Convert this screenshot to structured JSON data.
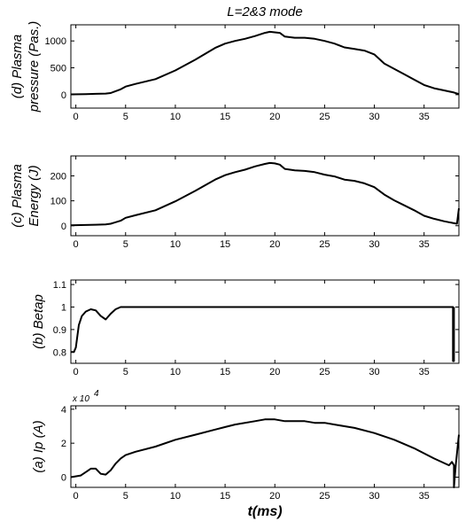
{
  "chart_data": [
    {
      "type": "line",
      "panel": "d",
      "title": "L=2&3 mode",
      "ylabel_lines": [
        "(d) Plasma",
        "pressure (Pas.)"
      ],
      "xlim": [
        -0.5,
        38.5
      ],
      "ylim": [
        -250,
        1300
      ],
      "x_ticks": [
        0,
        5,
        10,
        15,
        20,
        25,
        30,
        35
      ],
      "y_ticks": [
        0,
        500,
        1000
      ],
      "x": [
        -0.5,
        1.0,
        2.0,
        3.0,
        3.5,
        4.5,
        5.0,
        6.0,
        8.0,
        10.0,
        12.0,
        14.0,
        15.0,
        16.0,
        17.0,
        18.0,
        19.0,
        19.5,
        20.0,
        20.5,
        21.0,
        22.0,
        23.0,
        24.0,
        25.0,
        26.0,
        27.0,
        28.0,
        29.0,
        30.0,
        31.0,
        32.0,
        33.0,
        34.0,
        35.0,
        36.0,
        37.0,
        38.0,
        38.5
      ],
      "values": [
        5,
        10,
        15,
        20,
        30,
        100,
        150,
        200,
        290,
        450,
        650,
        870,
        950,
        1000,
        1040,
        1090,
        1150,
        1170,
        1160,
        1150,
        1080,
        1060,
        1060,
        1040,
        1000,
        950,
        880,
        850,
        820,
        750,
        580,
        480,
        380,
        280,
        180,
        120,
        80,
        40,
        10
      ]
    },
    {
      "type": "line",
      "panel": "c",
      "ylabel_lines": [
        "(c) Plasma",
        "Energy (J)"
      ],
      "xlim": [
        -0.5,
        38.5
      ],
      "ylim": [
        -40,
        280
      ],
      "x_ticks": [
        0,
        5,
        10,
        15,
        20,
        25,
        30,
        35
      ],
      "y_ticks": [
        0,
        100,
        200
      ],
      "x": [
        -0.5,
        1.0,
        2.0,
        3.0,
        3.5,
        4.5,
        5.0,
        6.0,
        8.0,
        10.0,
        12.0,
        14.0,
        15.0,
        16.0,
        17.0,
        18.0,
        19.0,
        19.5,
        20.0,
        20.5,
        21.0,
        22.0,
        23.0,
        24.0,
        25.0,
        26.0,
        27.0,
        28.0,
        29.0,
        30.0,
        31.0,
        32.0,
        33.0,
        34.0,
        35.0,
        36.0,
        37.0,
        38.0,
        38.3,
        38.5
      ],
      "values": [
        2,
        3,
        4,
        5,
        8,
        20,
        32,
        42,
        62,
        98,
        140,
        185,
        203,
        215,
        225,
        238,
        248,
        252,
        250,
        245,
        228,
        222,
        220,
        215,
        205,
        198,
        185,
        180,
        170,
        155,
        125,
        102,
        82,
        62,
        40,
        28,
        18,
        10,
        8,
        70
      ]
    },
    {
      "type": "line",
      "panel": "b",
      "ylabel_lines": [
        "(b) Betap"
      ],
      "xlim": [
        -0.5,
        38.5
      ],
      "ylim": [
        0.75,
        1.12
      ],
      "x_ticks": [
        0,
        5,
        10,
        15,
        20,
        25,
        30,
        35
      ],
      "y_ticks": [
        0.8,
        0.9,
        1,
        1.1
      ],
      "y_tick_labels": [
        "0.8",
        "0.9",
        "1",
        "1.1"
      ],
      "x": [
        -0.5,
        -0.2,
        0.0,
        0.3,
        0.6,
        1.0,
        1.5,
        2.0,
        2.5,
        3.0,
        3.5,
        4.0,
        4.5,
        5.0,
        10.0,
        20.0,
        30.0,
        37.8,
        37.9,
        37.9,
        38.0,
        38.0,
        38.0
      ],
      "values": [
        0.8,
        0.8,
        0.82,
        0.92,
        0.96,
        0.98,
        0.99,
        0.985,
        0.96,
        0.945,
        0.97,
        0.99,
        1.0,
        1.0,
        1.0,
        1.0,
        1.0,
        1.0,
        1.0,
        0.76,
        0.76,
        1.0,
        1.0
      ]
    },
    {
      "type": "line",
      "panel": "a",
      "ylabel_lines": [
        "(a) Ip (A)"
      ],
      "y_exponent_label": "x 10",
      "y_exponent_power": "4",
      "xlabel": "t(ms)",
      "xlim": [
        -0.5,
        38.5
      ],
      "ylim": [
        -0.6,
        4.2
      ],
      "x_ticks": [
        0,
        5,
        10,
        15,
        20,
        25,
        30,
        35
      ],
      "y_ticks": [
        0,
        2,
        4
      ],
      "x": [
        -0.5,
        0.5,
        1.0,
        1.5,
        2.0,
        2.5,
        3.0,
        3.5,
        4.0,
        4.5,
        5.0,
        6.0,
        8.0,
        10.0,
        12.0,
        14.0,
        16.0,
        18.0,
        19.0,
        20.0,
        21.0,
        22.0,
        23.0,
        24.0,
        25.0,
        26.0,
        27.0,
        28.0,
        30.0,
        32.0,
        34.0,
        36.0,
        37.5,
        37.8,
        38.0,
        38.0,
        38.2,
        38.5
      ],
      "values": [
        0.0,
        0.1,
        0.3,
        0.5,
        0.5,
        0.2,
        0.15,
        0.4,
        0.8,
        1.1,
        1.3,
        1.5,
        1.8,
        2.2,
        2.5,
        2.8,
        3.1,
        3.3,
        3.4,
        3.4,
        3.3,
        3.3,
        3.3,
        3.2,
        3.2,
        3.1,
        3.0,
        2.9,
        2.6,
        2.2,
        1.7,
        1.1,
        0.7,
        0.9,
        0.7,
        -0.6,
        0.8,
        2.5
      ]
    }
  ]
}
